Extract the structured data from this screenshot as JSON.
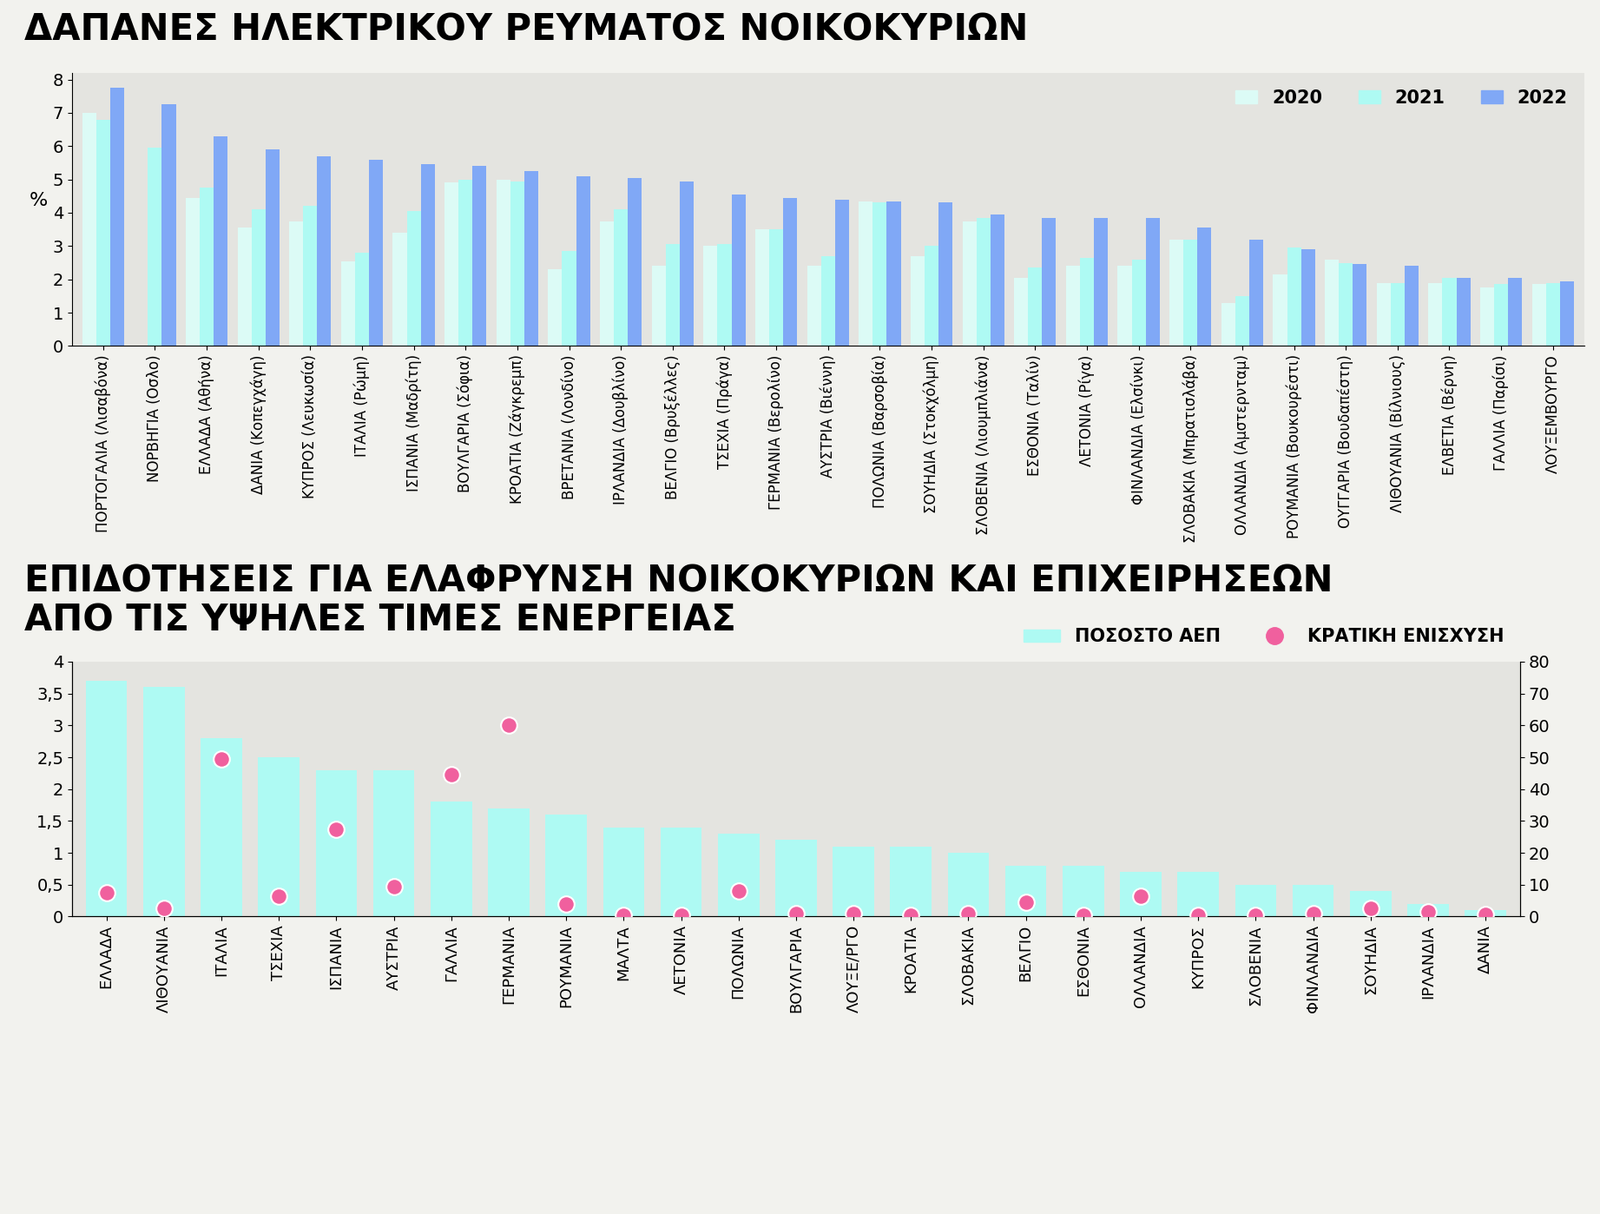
{
  "chart_data": [
    {
      "type": "bar",
      "title": "ΔΑΠΑΝΕΣ ΗΛΕΚΤΡΙΚΟΥ ΡΕΥΜΑΤΟΣ ΝΟΙΚΟΚΥΡΙΩΝ",
      "y_label": "%",
      "categories": [
        "ΠΟΡΤΟΓΑΛΙΑ (Λισαβόνα)",
        "ΝΟΡΒΗΓΙΑ (Οσλο)",
        "ΕΛΛΑΔΑ (Αθήνα)",
        "ΔΑΝΙΑ (Κοπεγχάγη)",
        "ΚΥΠΡΟΣ (Λευκωσία)",
        "ΙΤΑΛΙΑ (Ρώμη)",
        "ΙΣΠΑΝΙΑ (Μαδρίτη)",
        "ΒΟΥΛΓΑΡΙΑ (Σόφια)",
        "ΚΡΟΑΤΙΑ (Ζάγκρεμπ)",
        "ΒΡΕΤΑΝΙΑ (Λονδίνο)",
        "ΙΡΛΑΝΔΙΑ (Δουβλίνο)",
        "ΒΕΛΓΙΟ (Βρυξέλλες)",
        "ΤΣΕΧΙΑ (Πράγα)",
        "ΓΕΡΜΑΝΙΑ (Βερολίνο)",
        "ΑΥΣΤΡΙΑ (Βιέννη)",
        "ΠΟΛΩΝΙΑ (Βαρσοβία)",
        "ΣΟΥΗΔΙΑ (Στοκχόλμη)",
        "ΣΛΟΒΕΝΙΑ (Λιουμπλιάνα)",
        "ΕΣΘΟΝΙΑ (Ταλίν)",
        "ΛΕΤΟΝΙΑ (Ρίγα)",
        "ΦΙΝΛΑΝΔΙΑ (Ελσίνκι)",
        "ΣΛΟΒΑΚΙΑ (Μπρατισλάβα)",
        "ΟΛΛΑΝΔΙΑ (Αμστερνταμ)",
        "ΡΟΥΜΑΝΙΑ (Βουκουρέστι)",
        "ΟΥΓΓΑΡΙΑ (Βουδαπέστη)",
        "ΛΙΘΟΥΑΝΙΑ (Βίλνιους)",
        "ΕΛΒΕΤΙΑ (Βέρνη)",
        "ΓΑΛΛΙΑ (Παρίσι)",
        "ΛΟΥΞΕΜΒΟΥΡΓΟ"
      ],
      "series": [
        {
          "name": "2020",
          "color": "#dcfbf6",
          "values": [
            7.0,
            null,
            4.45,
            3.55,
            3.75,
            2.55,
            3.4,
            4.9,
            5.0,
            2.3,
            3.75,
            2.4,
            3.0,
            3.5,
            2.4,
            4.35,
            2.7,
            3.75,
            2.05,
            2.4,
            2.4,
            3.2,
            1.3,
            2.15,
            2.6,
            1.9,
            1.9,
            1.75,
            1.85
          ]
        },
        {
          "name": "2021",
          "color": "#aefaf3",
          "values": [
            6.8,
            5.95,
            4.75,
            4.1,
            4.2,
            2.8,
            4.05,
            5.0,
            4.95,
            2.85,
            4.1,
            3.05,
            3.05,
            3.5,
            2.7,
            4.3,
            3.0,
            3.85,
            2.35,
            2.65,
            2.6,
            3.2,
            1.5,
            2.95,
            2.5,
            1.9,
            2.05,
            1.85,
            1.9
          ]
        },
        {
          "name": "2022",
          "color": "#80a8f6",
          "values": [
            7.75,
            7.25,
            6.3,
            5.9,
            5.7,
            5.6,
            5.45,
            5.4,
            5.25,
            5.1,
            5.05,
            4.95,
            4.55,
            4.45,
            4.4,
            4.35,
            4.3,
            3.95,
            3.85,
            3.85,
            3.85,
            3.55,
            3.2,
            2.9,
            2.45,
            2.4,
            2.05,
            2.05,
            1.95
          ]
        }
      ],
      "ylim": [
        0,
        8.2
      ],
      "yticks": [
        0,
        1,
        2,
        3,
        4,
        5,
        6,
        7,
        8
      ],
      "legend": "upper right",
      "grid": false
    },
    {
      "type": "bar",
      "title": "ΕΠΙΔΟΤΗΣΕΙΣ ΓΙΑ ΕΛΑΦΡΥΝΣΗ ΝΟΙΚΟΚΥΡΙΩΝ ΚΑΙ ΕΠΙΧΕΙΡΗΣΕΩΝ\nΑΠΟ ΤΙΣ ΥΨΗΛΕΣ ΤΙΜΕΣ ΕΝΕΡΓΕΙΑΣ",
      "categories": [
        "ΕΛΛΑΔΑ",
        "ΛΙΘΟΥΑΝΙΑ",
        "ΙΤΑΛΙΑ",
        "ΤΣΕΧΙΑ",
        "ΙΣΠΑΝΙΑ",
        "ΑΥΣΤΡΙΑ",
        "ΓΑΛΛΙΑ",
        "ΓΕΡΜΑΝΙΑ",
        "ΡΟΥΜΑΝΙΑ",
        "ΜΑΛΤΑ",
        "ΛΕΤΟΝΙΑ",
        "ΠΟΛΩΝΙΑ",
        "ΒΟΥΛΓΑΡΙΑ",
        "ΛΟΥΞΕ/ΡΓΟ",
        "ΚΡΟΑΤΙΑ",
        "ΣΛΟΒΑΚΙΑ",
        "ΒΕΛΓΙΟ",
        "ΕΣΘΟΝΙΑ",
        "ΟΛΛΑΝΔΙΑ",
        "ΚΥΠΡΟΣ",
        "ΣΛΟΒΕΝΙΑ",
        "ΦΙΝΛΑΝΔΙΑ",
        "ΣΟΥΗΔΙΑ",
        "ΙΡΛΑΝΔΙΑ",
        "ΔΑΝΙΑ"
      ],
      "series": [
        {
          "name": "ΠΟΣΟΣΤΟ ΑΕΠ",
          "type": "bar",
          "color": "#aefaf3",
          "values": [
            3.7,
            3.6,
            2.8,
            2.5,
            2.3,
            2.3,
            1.8,
            1.7,
            1.6,
            1.4,
            1.4,
            1.3,
            1.2,
            1.1,
            1.1,
            1.0,
            0.8,
            0.8,
            0.7,
            0.7,
            0.5,
            0.5,
            0.4,
            0.2,
            0.1
          ]
        },
        {
          "name": "ΚΡΑΤΙΚΗ ΕΝΙΣΧΥΣΗ",
          "type": "scatter",
          "axis": "y2",
          "color": "#f0609e",
          "marker": "o",
          "values": [
            7.5,
            2.5,
            49.5,
            6.5,
            27.5,
            9.5,
            44.5,
            60,
            4,
            0.5,
            0.5,
            8,
            1,
            1,
            0.5,
            1,
            4.5,
            0.3,
            6.5,
            0.3,
            0.3,
            1,
            2.5,
            1.5,
            0.8
          ]
        }
      ],
      "ylim": [
        0,
        4
      ],
      "yticks": [
        0,
        {
          "value": 0.5,
          "label": "0,5"
        },
        1,
        {
          "value": 1.5,
          "label": "1,5"
        },
        2,
        {
          "value": 2.5,
          "label": "2,5"
        },
        3,
        {
          "value": 3.5,
          "label": "3,5"
        },
        4
      ],
      "y2lim": [
        0,
        80
      ],
      "y2ticks": [
        0,
        10,
        20,
        30,
        40,
        50,
        60,
        70,
        80
      ],
      "legend": "upper right",
      "grid": false
    }
  ]
}
